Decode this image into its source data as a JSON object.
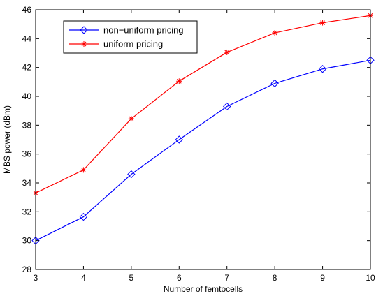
{
  "chart_data": {
    "type": "line",
    "xlabel": "Number of femtocells",
    "ylabel": "MBS power (dBm)",
    "x": [
      3,
      4,
      5,
      6,
      7,
      8,
      9,
      10
    ],
    "xlim": [
      3,
      10
    ],
    "ylim": [
      28,
      46
    ],
    "xticks": [
      3,
      4,
      5,
      6,
      7,
      8,
      9,
      10
    ],
    "yticks": [
      28,
      30,
      32,
      34,
      36,
      38,
      40,
      42,
      44,
      46
    ],
    "grid": false,
    "legend_position": "top-left",
    "series": [
      {
        "name": "non−uniform pricing",
        "color": "#0000ff",
        "marker": "diamond",
        "values": [
          30.0,
          31.65,
          34.6,
          37.0,
          39.3,
          40.9,
          41.9,
          42.5
        ]
      },
      {
        "name": "uniform pricing",
        "color": "#ff0000",
        "marker": "asterisk",
        "values": [
          33.3,
          34.9,
          38.45,
          41.05,
          43.05,
          44.4,
          45.1,
          45.6
        ]
      }
    ]
  }
}
